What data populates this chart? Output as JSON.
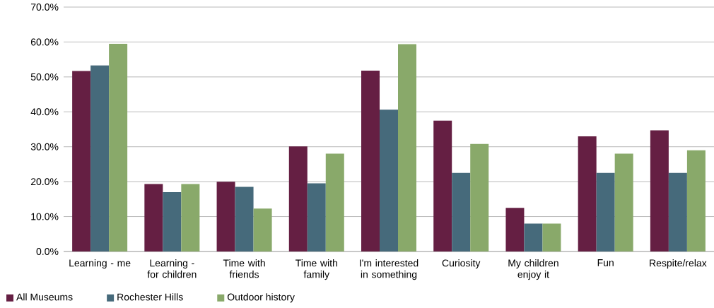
{
  "chart_data": {
    "type": "bar",
    "categories": [
      "Learning - me",
      "Learning - for children",
      "Time with friends",
      "Time with family",
      "I'm interested in something",
      "Curiosity",
      "My children enjoy it",
      "Fun",
      "Respite/relax"
    ],
    "series": [
      {
        "name": "All Museums",
        "color": "#651f43",
        "values": [
          51.7,
          19.3,
          20.0,
          30.1,
          51.8,
          37.5,
          12.5,
          33.0,
          34.7
        ]
      },
      {
        "name": "Rochester Hills",
        "color": "#466a7b",
        "values": [
          53.3,
          17.0,
          18.5,
          19.5,
          40.6,
          22.5,
          8.0,
          22.5,
          22.5
        ]
      },
      {
        "name": "Outdoor history",
        "color": "#89a96a",
        "values": [
          59.5,
          19.3,
          12.3,
          28.0,
          59.4,
          30.8,
          8.0,
          28.0,
          29.0
        ]
      }
    ],
    "ylim": [
      0,
      70
    ],
    "yticks": [
      {
        "value": 0,
        "label": "0.0%"
      },
      {
        "value": 10,
        "label": "10.0%"
      },
      {
        "value": 20,
        "label": "20.0%"
      },
      {
        "value": 30,
        "label": "30.0%"
      },
      {
        "value": 40,
        "label": "40.0%"
      },
      {
        "value": 50,
        "label": "50.0%"
      },
      {
        "value": 60,
        "label": "60.0%"
      },
      {
        "value": 70,
        "label": "70.0%"
      }
    ],
    "grid": "y",
    "legend": "bottom left"
  }
}
